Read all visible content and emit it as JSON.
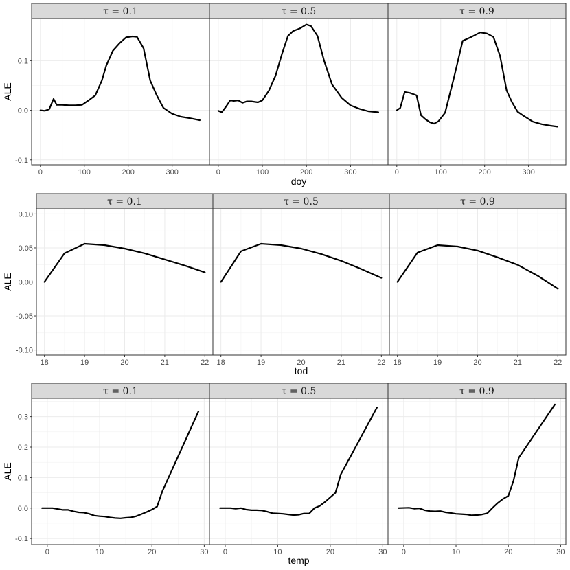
{
  "chart_data": [
    {
      "type": "line",
      "ylabel": "ALE",
      "xlabel": "doy",
      "xlim": [
        -20,
        385
      ],
      "ylim": [
        -0.11,
        0.185
      ],
      "xticks": [
        0,
        100,
        200,
        300
      ],
      "xtick_labels": [
        "0",
        "100",
        "200",
        "300"
      ],
      "yticks": [
        -0.1,
        0,
        0.1
      ],
      "ytick_labels": [
        "-0.1",
        "0.0",
        "0.1"
      ],
      "grid": true,
      "panels": [
        {
          "label": "τ = 0.1",
          "x": [
            0,
            10,
            20,
            30,
            37,
            50,
            65,
            80,
            95,
            110,
            125,
            140,
            150,
            165,
            180,
            195,
            210,
            220,
            235,
            250,
            265,
            280,
            300,
            320,
            340,
            363
          ],
          "y": [
            0,
            -0.001,
            0.002,
            0.023,
            0.011,
            0.011,
            0.01,
            0.01,
            0.011,
            0.02,
            0.03,
            0.06,
            0.09,
            0.12,
            0.135,
            0.147,
            0.149,
            0.148,
            0.125,
            0.06,
            0.03,
            0.005,
            -0.007,
            -0.013,
            -0.016,
            -0.02
          ]
        },
        {
          "label": "τ = 0.5",
          "x": [
            0,
            8,
            18,
            27,
            35,
            45,
            55,
            65,
            75,
            90,
            100,
            115,
            130,
            145,
            158,
            170,
            185,
            200,
            210,
            225,
            240,
            258,
            280,
            300,
            320,
            340,
            363
          ],
          "y": [
            -0.001,
            -0.004,
            0.008,
            0.02,
            0.019,
            0.02,
            0.015,
            0.018,
            0.018,
            0.016,
            0.02,
            0.04,
            0.07,
            0.115,
            0.15,
            0.16,
            0.165,
            0.173,
            0.17,
            0.15,
            0.1,
            0.052,
            0.025,
            0.01,
            0.003,
            -0.002,
            -0.004
          ]
        },
        {
          "label": "τ = 0.9",
          "x": [
            0,
            8,
            18,
            30,
            45,
            55,
            65,
            75,
            85,
            95,
            110,
            130,
            150,
            170,
            190,
            205,
            220,
            235,
            250,
            262,
            275,
            290,
            310,
            330,
            350,
            366
          ],
          "y": [
            0,
            0.005,
            0.037,
            0.035,
            0.03,
            -0.01,
            -0.018,
            -0.024,
            -0.027,
            -0.022,
            -0.005,
            0.065,
            0.14,
            0.148,
            0.157,
            0.155,
            0.148,
            0.11,
            0.04,
            0.017,
            -0.003,
            -0.012,
            -0.023,
            -0.028,
            -0.031,
            -0.033
          ]
        }
      ]
    },
    {
      "type": "line",
      "ylabel": "ALE",
      "xlabel": "tod",
      "xlim": [
        17.8,
        22.2
      ],
      "ylim": [
        -0.1075,
        0.1075
      ],
      "xticks": [
        18,
        19,
        20,
        21,
        22
      ],
      "xtick_labels": [
        "18",
        "19",
        "20",
        "21",
        "22"
      ],
      "yticks": [
        -0.1,
        -0.05,
        0,
        0.05,
        0.1
      ],
      "ytick_labels": [
        "-0.10",
        "-0.05",
        "0.00",
        "0.05",
        "0.10"
      ],
      "grid": true,
      "panels": [
        {
          "label": "τ = 0.1",
          "x": [
            18,
            18.5,
            19,
            19.5,
            20,
            20.5,
            21,
            21.5,
            22
          ],
          "y": [
            0,
            0.042,
            0.056,
            0.054,
            0.049,
            0.042,
            0.033,
            0.024,
            0.014
          ]
        },
        {
          "label": "τ = 0.5",
          "x": [
            18,
            18.5,
            19,
            19.5,
            20,
            20.5,
            21,
            21.5,
            22
          ],
          "y": [
            0,
            0.045,
            0.056,
            0.054,
            0.049,
            0.041,
            0.031,
            0.019,
            0.006
          ]
        },
        {
          "label": "τ = 0.9",
          "x": [
            18,
            18.5,
            19,
            19.5,
            20,
            20.5,
            21,
            21.5,
            22
          ],
          "y": [
            0,
            0.043,
            0.054,
            0.052,
            0.046,
            0.036,
            0.025,
            0.009,
            -0.01
          ]
        }
      ]
    },
    {
      "type": "line",
      "ylabel": "ALE",
      "xlabel": "temp",
      "xlim": [
        -3,
        31
      ],
      "ylim": [
        -0.12,
        0.36
      ],
      "xticks": [
        0,
        10,
        20,
        30
      ],
      "xtick_labels": [
        "0",
        "10",
        "20",
        "30"
      ],
      "yticks": [
        -0.1,
        0,
        0.1,
        0.2,
        0.3
      ],
      "ytick_labels": [
        "-0.1",
        "0.0",
        "0.1",
        "0.2",
        "0.3"
      ],
      "grid": true,
      "panels": [
        {
          "label": "τ = 0.1",
          "x": [
            -1,
            1,
            3,
            4,
            5,
            6,
            7,
            8,
            9,
            10,
            11,
            12,
            13,
            14,
            15,
            16,
            17,
            18,
            19,
            20,
            21,
            22,
            28.9
          ],
          "y": [
            0,
            0,
            -0.006,
            -0.006,
            -0.011,
            -0.014,
            -0.015,
            -0.019,
            -0.025,
            -0.027,
            -0.028,
            -0.031,
            -0.033,
            -0.034,
            -0.032,
            -0.031,
            -0.027,
            -0.02,
            -0.013,
            -0.005,
            0.005,
            0.055,
            0.317
          ]
        },
        {
          "label": "τ = 0.5",
          "x": [
            -1,
            1,
            2,
            3,
            4,
            5,
            6,
            7,
            8,
            9,
            10,
            11,
            12,
            13,
            14,
            15,
            16,
            17,
            18,
            19,
            20,
            21,
            22,
            28.9
          ],
          "y": [
            0,
            0,
            -0.002,
            0,
            -0.005,
            -0.007,
            -0.007,
            -0.008,
            -0.012,
            -0.017,
            -0.018,
            -0.019,
            -0.021,
            -0.023,
            -0.022,
            -0.018,
            -0.018,
            0,
            0.007,
            0.02,
            0.035,
            0.05,
            0.11,
            0.33
          ]
        },
        {
          "label": "τ = 0.9",
          "x": [
            -1,
            1,
            2,
            3,
            4,
            5,
            6,
            7,
            8,
            9,
            10,
            11,
            12,
            13,
            14,
            15,
            16,
            17,
            18,
            19,
            20,
            21,
            22,
            28.9
          ],
          "y": [
            0,
            0.001,
            -0.002,
            -0.001,
            -0.007,
            -0.01,
            -0.011,
            -0.01,
            -0.014,
            -0.016,
            -0.019,
            -0.02,
            -0.021,
            -0.024,
            -0.023,
            -0.021,
            -0.017,
            0.001,
            0.017,
            0.03,
            0.04,
            0.09,
            0.165,
            0.34
          ]
        }
      ]
    }
  ]
}
